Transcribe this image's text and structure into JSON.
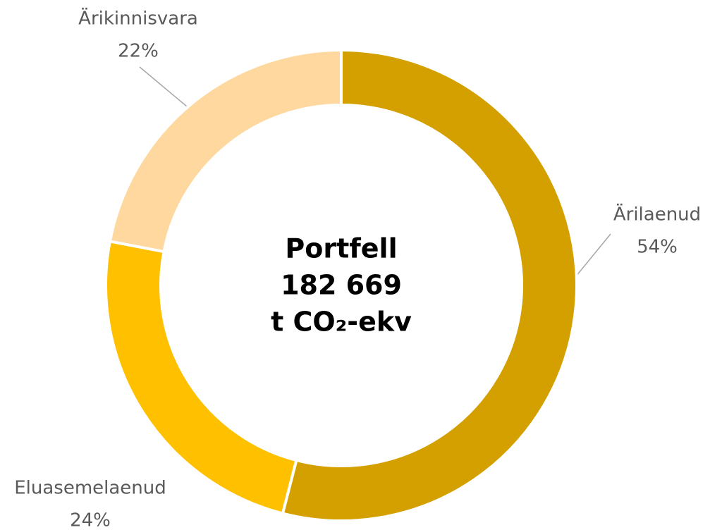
{
  "chart_data": {
    "type": "donut",
    "categories": [
      "Ärilaenud",
      "Eluasemelaenud",
      "Ärikinnisvara"
    ],
    "values": [
      54,
      24,
      22
    ],
    "value_labels": [
      "54%",
      "24%",
      "22%"
    ],
    "colors": [
      "#D4A000",
      "#FFC000",
      "#FED89F"
    ],
    "center_text": [
      "Portfell",
      "182 669",
      "t CO₂-ekv"
    ]
  }
}
